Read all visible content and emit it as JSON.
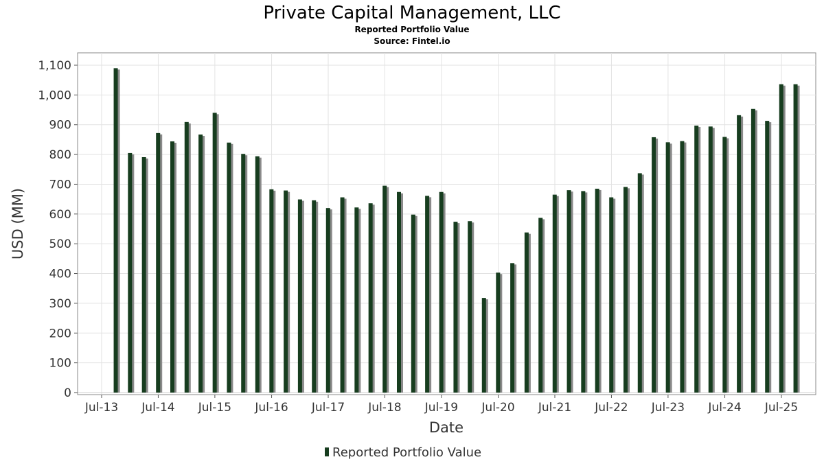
{
  "chart_data": {
    "type": "bar",
    "title": "Private Capital Management, LLC",
    "subtitle": "Reported Portfolio Value",
    "source": "Source: Fintel.io",
    "xlabel": "Date",
    "ylabel": "USD (MM)",
    "ylim": [
      0,
      1100
    ],
    "yticks": [
      0,
      100,
      200,
      300,
      400,
      500,
      600,
      700,
      800,
      900,
      1000,
      1100
    ],
    "ytick_labels": [
      "0",
      "100",
      "200",
      "300",
      "400",
      "500",
      "600",
      "700",
      "800",
      "900",
      "1,000",
      "1,100"
    ],
    "x_start": "2013-04-01",
    "x_end": "2025-11-01",
    "xticks": [
      {
        "date": "2013-07-01",
        "label": "Jul-13"
      },
      {
        "date": "2014-07-01",
        "label": "Jul-14"
      },
      {
        "date": "2015-07-01",
        "label": "Jul-15"
      },
      {
        "date": "2016-07-01",
        "label": "Jul-16"
      },
      {
        "date": "2017-07-01",
        "label": "Jul-17"
      },
      {
        "date": "2018-07-01",
        "label": "Jul-18"
      },
      {
        "date": "2019-07-01",
        "label": "Jul-19"
      },
      {
        "date": "2020-07-01",
        "label": "Jul-20"
      },
      {
        "date": "2021-07-01",
        "label": "Jul-21"
      },
      {
        "date": "2022-07-01",
        "label": "Jul-22"
      },
      {
        "date": "2023-07-01",
        "label": "Jul-23"
      },
      {
        "date": "2024-07-01",
        "label": "Jul-24"
      },
      {
        "date": "2025-07-01",
        "label": "Jul-25"
      }
    ],
    "grid": true,
    "legend_position": "bottom-center",
    "series": [
      {
        "name": "Reported Portfolio Value",
        "color": "#173d1f",
        "shadow_color": "#8a8a8a",
        "x": [
          "2013-09-30",
          "2013-12-31",
          "2014-03-31",
          "2014-06-30",
          "2014-09-30",
          "2014-12-31",
          "2015-03-31",
          "2015-06-30",
          "2015-09-30",
          "2015-12-31",
          "2016-03-31",
          "2016-06-30",
          "2016-09-30",
          "2016-12-31",
          "2017-03-31",
          "2017-06-30",
          "2017-09-30",
          "2017-12-31",
          "2018-03-31",
          "2018-06-30",
          "2018-09-30",
          "2018-12-31",
          "2019-03-31",
          "2019-06-30",
          "2019-09-30",
          "2019-12-31",
          "2020-03-31",
          "2020-06-30",
          "2020-09-30",
          "2020-12-31",
          "2021-03-31",
          "2021-06-30",
          "2021-09-30",
          "2021-12-31",
          "2022-03-31",
          "2022-06-30",
          "2022-09-30",
          "2022-12-31",
          "2023-03-31",
          "2023-06-30",
          "2023-09-30",
          "2023-12-31",
          "2024-03-31",
          "2024-06-30",
          "2024-09-30",
          "2024-12-31",
          "2025-03-31",
          "2025-06-30",
          "2025-09-30"
        ],
        "values": [
          1090,
          805,
          791,
          872,
          844,
          909,
          867,
          940,
          840,
          802,
          794,
          683,
          679,
          649,
          646,
          620,
          656,
          622,
          636,
          695,
          674,
          598,
          661,
          674,
          574,
          576,
          318,
          403,
          435,
          538,
          587,
          665,
          680,
          677,
          685,
          656,
          691,
          737,
          858,
          841,
          845,
          897,
          894,
          859,
          932,
          953,
          913,
          1036,
          1036
        ]
      }
    ]
  }
}
